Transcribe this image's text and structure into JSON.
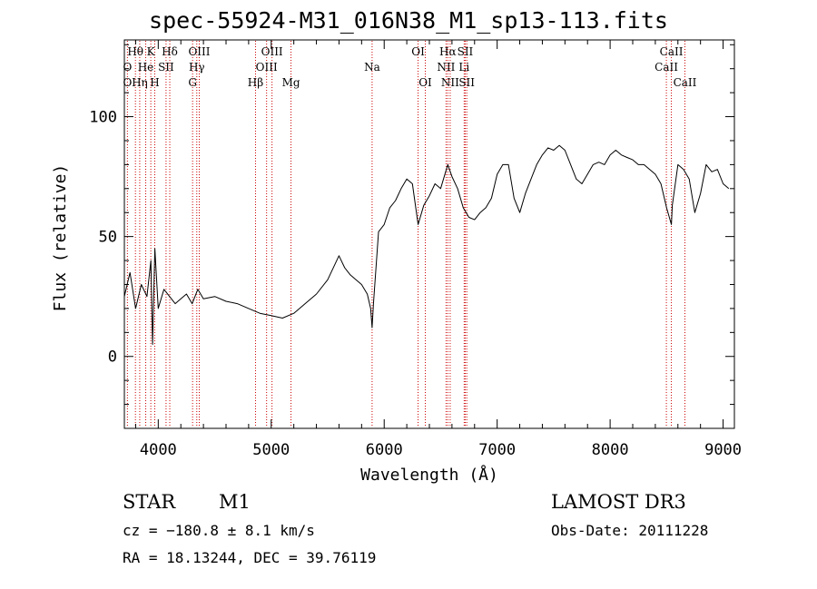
{
  "title": "spec-55924-M31_016N38_M1_sp13-113.fits",
  "info": {
    "class": "STAR",
    "subclass": "M1",
    "survey": "LAMOST DR3",
    "cz_text": "cz = −180.8 ± 8.1 km/s",
    "obs_date_text": "Obs-Date: 20111228",
    "radec_text": "RA =  18.13244, DEC =  39.76119"
  },
  "colors": {
    "spectrum": "#000000",
    "line_marker": "#cc0000",
    "axis": "#000000"
  },
  "chart_data": {
    "type": "line",
    "xlabel": "Wavelength (Å)",
    "ylabel": "Flux (relative)",
    "xlim": [
      3700,
      9100
    ],
    "ylim": [
      -30,
      132
    ],
    "xticks": [
      4000,
      5000,
      6000,
      7000,
      8000,
      9000
    ],
    "yticks": [
      0,
      50,
      100
    ],
    "series": [
      {
        "x": [
          3700,
          3750,
          3800,
          3850,
          3900,
          3935,
          3950,
          3970,
          4000,
          4050,
          4100,
          4150,
          4200,
          4250,
          4300,
          4350,
          4400,
          4500,
          4600,
          4700,
          4800,
          4900,
          5000,
          5100,
          5200,
          5300,
          5400,
          5500,
          5600,
          5650,
          5700,
          5800,
          5850,
          5880,
          5893,
          5905,
          5950,
          6000,
          6050,
          6100,
          6150,
          6200,
          6250,
          6300,
          6350,
          6400,
          6450,
          6500,
          6550,
          6563,
          6600,
          6650,
          6700,
          6750,
          6800,
          6850,
          6900,
          6950,
          7000,
          7050,
          7100,
          7150,
          7200,
          7250,
          7300,
          7350,
          7400,
          7450,
          7500,
          7550,
          7600,
          7650,
          7700,
          7750,
          7800,
          7850,
          7900,
          7950,
          8000,
          8050,
          8100,
          8150,
          8200,
          8250,
          8300,
          8350,
          8400,
          8450,
          8500,
          8542,
          8550,
          8600,
          8650,
          8700,
          8750,
          8800,
          8850,
          8900,
          8950,
          9000,
          9050
        ],
        "y": [
          25,
          35,
          20,
          30,
          25,
          40,
          5,
          45,
          20,
          28,
          25,
          22,
          24,
          26,
          22,
          28,
          24,
          25,
          23,
          22,
          20,
          18,
          17,
          16,
          18,
          22,
          26,
          32,
          42,
          37,
          34,
          30,
          26,
          20,
          12,
          22,
          52,
          55,
          62,
          65,
          70,
          74,
          72,
          55,
          63,
          67,
          72,
          70,
          78,
          80,
          75,
          70,
          62,
          58,
          57,
          60,
          62,
          66,
          76,
          80,
          80,
          66,
          60,
          68,
          74,
          80,
          84,
          87,
          86,
          88,
          86,
          80,
          74,
          72,
          76,
          80,
          81,
          80,
          84,
          86,
          84,
          83,
          82,
          80,
          80,
          78,
          76,
          72,
          62,
          55,
          63,
          80,
          78,
          74,
          60,
          68,
          80,
          77,
          78,
          72,
          70
        ]
      }
    ],
    "lines": [
      {
        "name": "O",
        "wave": 3727,
        "row": 3
      },
      {
        "name": "O",
        "wave": 3727,
        "row": 2
      },
      {
        "name": "Hθ",
        "wave": 3798,
        "row": 1
      },
      {
        "name": "Hη",
        "wave": 3836,
        "row": 3
      },
      {
        "name": "He",
        "wave": 3889,
        "row": 2
      },
      {
        "name": "K",
        "wave": 3934,
        "row": 1
      },
      {
        "name": "H",
        "wave": 3969,
        "row": 3
      },
      {
        "name": "SII",
        "wave": 4069,
        "row": 2
      },
      {
        "name": "Hδ",
        "wave": 4102,
        "row": 1
      },
      {
        "name": "G",
        "wave": 4304,
        "row": 3
      },
      {
        "name": "Hγ",
        "wave": 4341,
        "row": 2
      },
      {
        "name": "OIII",
        "wave": 4363,
        "row": 1
      },
      {
        "name": "Hβ",
        "wave": 4861,
        "row": 3
      },
      {
        "name": "OIII",
        "wave": 4959,
        "row": 2
      },
      {
        "name": "OIII",
        "wave": 5007,
        "row": 1
      },
      {
        "name": "Mg",
        "wave": 5175,
        "row": 3
      },
      {
        "name": "Na",
        "wave": 5893,
        "row": 2
      },
      {
        "name": "OI",
        "wave": 6300,
        "row": 1
      },
      {
        "name": "OI",
        "wave": 6364,
        "row": 3
      },
      {
        "name": "NII",
        "wave": 6548,
        "row": 2
      },
      {
        "name": "NII",
        "wave": 6584,
        "row": 3
      },
      {
        "name": "Hα",
        "wave": 6563,
        "row": 1
      },
      {
        "name": "SII",
        "wave": 6717,
        "row": 1
      },
      {
        "name": "Li",
        "wave": 6708,
        "row": 2
      },
      {
        "name": "SII",
        "wave": 6731,
        "row": 3
      },
      {
        "name": "CaII",
        "wave": 8498,
        "row": 2
      },
      {
        "name": "CaII",
        "wave": 8542,
        "row": 1
      },
      {
        "name": "CaII",
        "wave": 8662,
        "row": 3
      }
    ]
  }
}
